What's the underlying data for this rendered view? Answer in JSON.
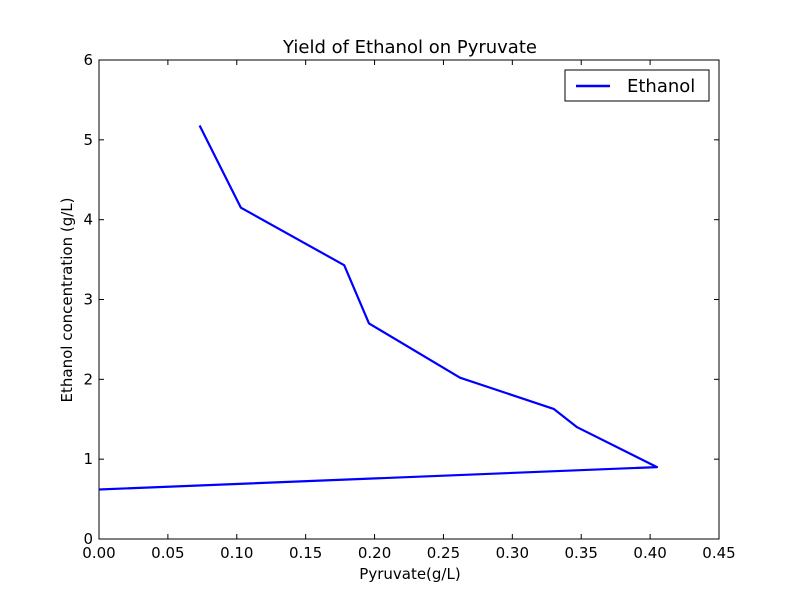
{
  "chart_data": {
    "type": "line",
    "title": "Yield of Ethanol on Pyruvate",
    "xlabel": "Pyruvate(g/L)",
    "ylabel": "Ethanol concentration (g/L)",
    "xlim": [
      0,
      0.45
    ],
    "ylim": [
      0,
      6
    ],
    "xticks": [
      0.0,
      0.05,
      0.1,
      0.15,
      0.2,
      0.25,
      0.3,
      0.35,
      0.4,
      0.45
    ],
    "xtick_labels": [
      "0.00",
      "0.05",
      "0.10",
      "0.15",
      "0.20",
      "0.25",
      "0.30",
      "0.35",
      "0.40",
      "0.45"
    ],
    "yticks": [
      0,
      1,
      2,
      3,
      4,
      5,
      6
    ],
    "ytick_labels": [
      "0",
      "1",
      "2",
      "3",
      "4",
      "5",
      "6"
    ],
    "grid": false,
    "legend_position": "top-right",
    "series": [
      {
        "name": "Ethanol",
        "color": "#0000ff",
        "x": [
          0.0,
          0.405,
          0.347,
          0.33,
          0.262,
          0.196,
          0.178,
          0.103,
          0.073
        ],
        "y": [
          0.62,
          0.9,
          1.4,
          1.63,
          2.02,
          2.7,
          3.43,
          4.15,
          5.18
        ]
      }
    ]
  }
}
